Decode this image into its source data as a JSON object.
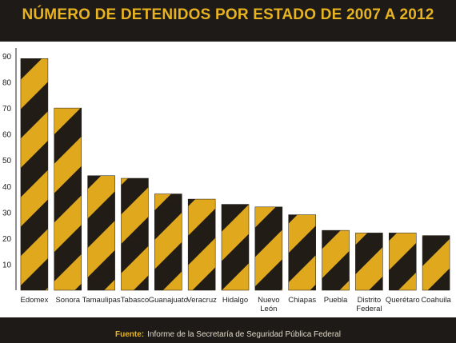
{
  "title": "NÚMERO DE DETENIDOS POR ESTADO DE 2007 A 2012",
  "footer": {
    "source_label": "Fuente:",
    "source_text": "Informe de la Secretaría de Seguridad Pública Federal"
  },
  "colors": {
    "background": "#1d1a17",
    "stripe_yellow": "#e0a81c",
    "stripe_dark": "#221c16",
    "title": "#e8b320"
  },
  "chart_data": {
    "type": "bar",
    "categories": [
      "Edomex",
      "Sonora",
      "Tamaulipas",
      "Tabasco",
      "Guanajuato",
      "Veracruz",
      "Hidalgo",
      "Nuevo León",
      "Chiapas",
      "Puebla",
      "Distrito Federal",
      "Querétaro",
      "Coahuila"
    ],
    "values": [
      89,
      70,
      44,
      43,
      37,
      35,
      33,
      32,
      29,
      23,
      22,
      22,
      21
    ],
    "ylim": [
      0,
      90
    ],
    "yticks": [
      10,
      20,
      30,
      40,
      50,
      60,
      70,
      80,
      90
    ],
    "grid": false,
    "title": "NÚMERO DE DETENIDOS POR ESTADO DE 2007 A 2012"
  }
}
